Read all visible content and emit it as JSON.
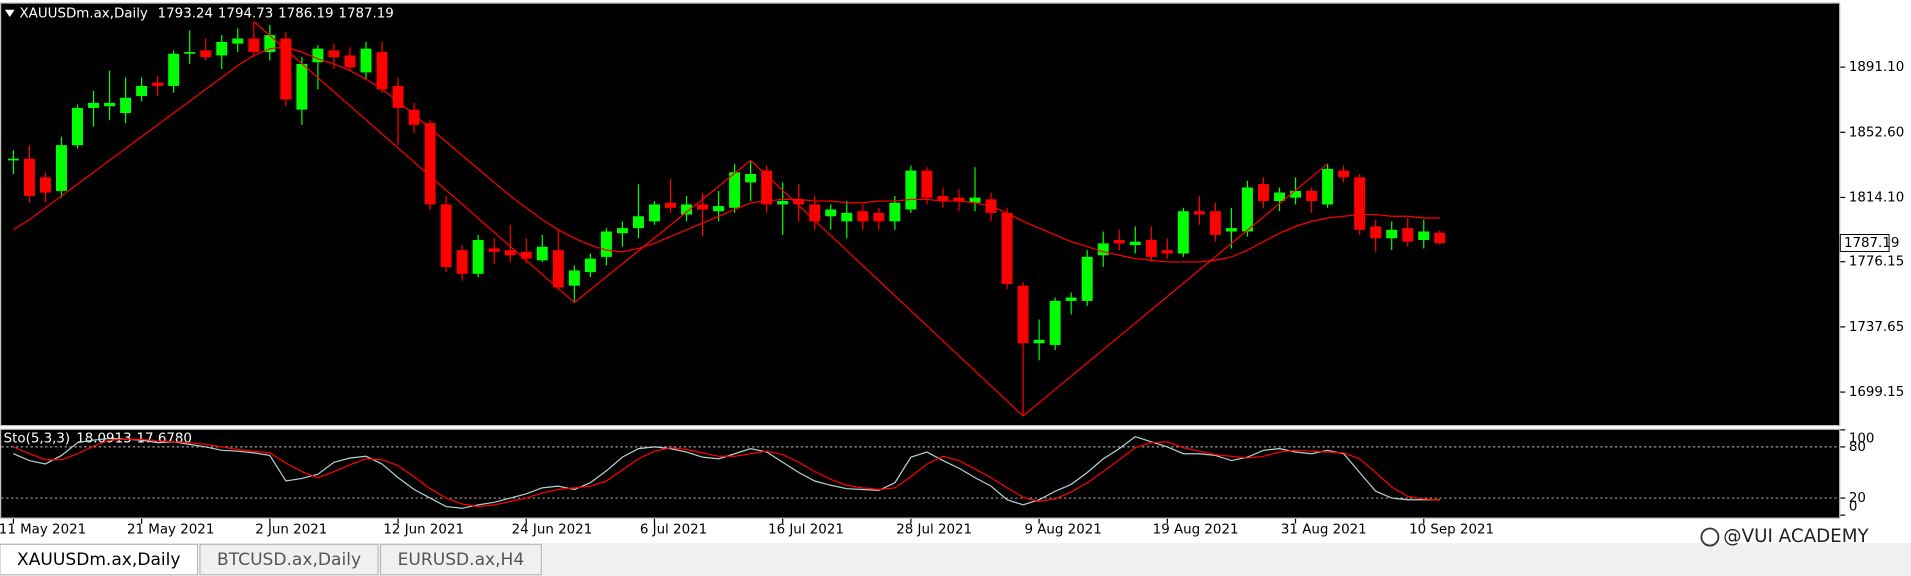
{
  "chart_data": {
    "type": "candlestick",
    "symbol": "XAUUSDm.ax,Daily",
    "categories": [
      "11 May 2021",
      null,
      null,
      null,
      null,
      null,
      null,
      null,
      "21 May 2021",
      null,
      null,
      null,
      null,
      null,
      null,
      null,
      "2 Jun 2021",
      null,
      null,
      null,
      null,
      null,
      null,
      null,
      "12 Jun 2021",
      null,
      null,
      null,
      null,
      null,
      null,
      null,
      "24 Jun 2021",
      null,
      null,
      null,
      null,
      null,
      null,
      null,
      "6 Jul 2021",
      null,
      null,
      null,
      null,
      null,
      null,
      null,
      "16 Jul 2021",
      null,
      null,
      null,
      null,
      null,
      null,
      null,
      "28 Jul 2021",
      null,
      null,
      null,
      null,
      null,
      null,
      null,
      "9 Aug 2021",
      null,
      null,
      null,
      null,
      null,
      null,
      null,
      "19 Aug 2021",
      null,
      null,
      null,
      null,
      null,
      null,
      null,
      "31 Aug 2021",
      null,
      null,
      null,
      null,
      null,
      null,
      null,
      "10 Sep 2021",
      null
    ],
    "open": [
      1836,
      1837,
      1826,
      1818,
      1845,
      1867,
      1868,
      1864,
      1874,
      1882,
      1880,
      1899,
      1901,
      1898,
      1905,
      1908,
      1900,
      1908,
      1866,
      1894,
      1901,
      1898,
      1888,
      1900,
      1880,
      1866,
      1858,
      1810,
      1783,
      1769,
      1784,
      1783,
      1782,
      1777,
      1783,
      1762,
      1770,
      1779,
      1793,
      1796,
      1800,
      1811,
      1804,
      1810,
      1806,
      1808,
      1823,
      1830,
      1810,
      1813,
      1810,
      1803,
      1800,
      1806,
      1805,
      1800,
      1807,
      1830,
      1815,
      1814,
      1811,
      1813,
      1805,
      1762,
      1728,
      1727,
      1753,
      1753,
      1780,
      1789,
      1786,
      1789,
      1783,
      1781,
      1806,
      1806,
      1794,
      1794,
      1822,
      1812,
      1814,
      1818,
      1810,
      1830,
      1826,
      1797,
      1790,
      1796,
      1789,
      1793.24
    ],
    "high": [
      1842,
      1845,
      1829,
      1850,
      1869,
      1877,
      1889,
      1885,
      1885,
      1886,
      1901,
      1913,
      1908,
      1910,
      1914,
      1918,
      1916,
      1912,
      1897,
      1904,
      1905,
      1903,
      1906,
      1906,
      1885,
      1870,
      1860,
      1815,
      1786,
      1792,
      1790,
      1798,
      1790,
      1792,
      1795,
      1774,
      1781,
      1796,
      1800,
      1822,
      1812,
      1825,
      1815,
      1817,
      1818,
      1834,
      1836,
      1833,
      1823,
      1822,
      1815,
      1810,
      1812,
      1810,
      1808,
      1815,
      1833,
      1832,
      1820,
      1819,
      1832,
      1817,
      1808,
      1764,
      1742,
      1755,
      1758,
      1783,
      1794,
      1795,
      1797,
      1797,
      1790,
      1808,
      1815,
      1811,
      1808,
      1824,
      1826,
      1820,
      1826,
      1820,
      1834,
      1833,
      1828,
      1801,
      1800,
      1802,
      1801,
      1794.73
    ],
    "low": [
      1828,
      1811,
      1811,
      1814,
      1843,
      1856,
      1860,
      1858,
      1871,
      1874,
      1876,
      1893,
      1895,
      1890,
      1900,
      1897,
      1895,
      1868,
      1857,
      1878,
      1890,
      1889,
      1884,
      1876,
      1845,
      1852,
      1807,
      1770,
      1765,
      1767,
      1775,
      1776,
      1775,
      1776,
      1760,
      1752,
      1767,
      1774,
      1785,
      1790,
      1798,
      1805,
      1800,
      1791,
      1800,
      1805,
      1812,
      1805,
      1792,
      1800,
      1795,
      1795,
      1790,
      1795,
      1795,
      1795,
      1805,
      1810,
      1808,
      1806,
      1806,
      1800,
      1760,
      1685,
      1718,
      1724,
      1745,
      1750,
      1773,
      1783,
      1781,
      1776,
      1778,
      1779,
      1798,
      1788,
      1784,
      1791,
      1808,
      1806,
      1810,
      1805,
      1808,
      1823,
      1792,
      1782,
      1783,
      1785,
      1784,
      1786.19
    ],
    "close": [
      1837,
      1815,
      1817,
      1845,
      1867,
      1870,
      1870,
      1873,
      1880,
      1880,
      1899,
      1900,
      1897,
      1906,
      1908,
      1900,
      1910,
      1872,
      1893,
      1902,
      1897,
      1891,
      1902,
      1878,
      1867,
      1857,
      1810,
      1773,
      1769,
      1789,
      1782,
      1780,
      1778,
      1785,
      1761,
      1771,
      1778,
      1794,
      1796,
      1803,
      1810,
      1808,
      1810,
      1807,
      1809,
      1829,
      1828,
      1810,
      1812,
      1810,
      1800,
      1807,
      1805,
      1800,
      1800,
      1811,
      1830,
      1814,
      1812,
      1812,
      1814,
      1805,
      1763,
      1728,
      1730,
      1753,
      1755,
      1779,
      1787,
      1787,
      1788,
      1779,
      1781,
      1806,
      1804,
      1792,
      1796,
      1820,
      1812,
      1817,
      1818,
      1812,
      1831,
      1826,
      1795,
      1790,
      1795,
      1788,
      1794,
      1787.19
    ],
    "up_color": "#00ff00",
    "down_color": "#ff0000",
    "ylim": [
      1679.7,
      1928.6
    ],
    "yticks": [
      {
        "value": 1891.1,
        "label": "1891.10"
      },
      {
        "value": 1852.6,
        "label": "1852.60"
      },
      {
        "value": 1814.1,
        "label": "1814.10"
      },
      {
        "value": 1776.15,
        "label": "1776.15"
      },
      {
        "value": 1737.65,
        "label": "1737.65"
      },
      {
        "value": 1699.15,
        "label": "1699.15"
      }
    ],
    "ma": {
      "color": "#ff0000",
      "values": [
        1795,
        1801,
        1808,
        1815,
        1822,
        1829,
        1836,
        1843,
        1850,
        1857,
        1864,
        1871,
        1878,
        1885,
        1892,
        1898,
        1902,
        1903,
        1900,
        1896,
        1893,
        1889,
        1884,
        1878,
        1871,
        1863,
        1855,
        1847,
        1839,
        1831,
        1823,
        1815,
        1808,
        1801,
        1795,
        1790,
        1786,
        1783,
        1782,
        1784,
        1787,
        1791,
        1795,
        1799,
        1803,
        1807,
        1811,
        1812,
        1813,
        1813,
        1812,
        1812,
        1811,
        1811,
        1812,
        1812,
        1813,
        1813,
        1812,
        1812,
        1811,
        1809,
        1805,
        1800,
        1796,
        1792,
        1788,
        1785,
        1782,
        1780,
        1778,
        1777,
        1776,
        1776,
        1776,
        1777,
        1779,
        1783,
        1788,
        1793,
        1797,
        1800,
        1802,
        1803,
        1804,
        1804,
        1803,
        1803,
        1802,
        1802
      ]
    },
    "zigzag": {
      "color": "#ff0000",
      "x": [
        15,
        35,
        46,
        63,
        82
      ],
      "values": [
        1918,
        1752,
        1836,
        1685,
        1834
      ]
    },
    "indicator": {
      "type": "line",
      "name": "Sto(5,3,3)",
      "readout": [
        {
          "value": 18.0913,
          "label": "18.0913"
        },
        {
          "value": 17.678,
          "label": "17.6780"
        }
      ],
      "ylim": [
        0,
        100
      ],
      "yticks": [
        100,
        80,
        20,
        0
      ],
      "series": [
        {
          "color": "#b4d2d2",
          "values": [
            72,
            64,
            60,
            70,
            85,
            88,
            90,
            89,
            88,
            85,
            86,
            83,
            80,
            76,
            75,
            73,
            70,
            40,
            43,
            48,
            62,
            67,
            69,
            60,
            44,
            30,
            20,
            10,
            8,
            12,
            15,
            20,
            25,
            32,
            34,
            30,
            38,
            52,
            68,
            78,
            80,
            78,
            74,
            68,
            66,
            72,
            78,
            74,
            62,
            50,
            40,
            35,
            31,
            30,
            29,
            38,
            68,
            74,
            64,
            55,
            44,
            34,
            18,
            12,
            18,
            28,
            36,
            50,
            66,
            78,
            92,
            86,
            80,
            72,
            72,
            70,
            64,
            68,
            76,
            78,
            74,
            72,
            76,
            72,
            50,
            28,
            20,
            18,
            18,
            18.0913
          ]
        },
        {
          "color": "#ff0000",
          "values": [
            80,
            72,
            65,
            65,
            72,
            81,
            88,
            89,
            89,
            87,
            86,
            85,
            83,
            80,
            77,
            75,
            73,
            61,
            51,
            44,
            51,
            59,
            66,
            65,
            58,
            45,
            31,
            20,
            13,
            10,
            12,
            16,
            20,
            26,
            30,
            32,
            34,
            40,
            53,
            66,
            75,
            79,
            77,
            73,
            69,
            69,
            72,
            75,
            71,
            62,
            51,
            42,
            35,
            32,
            30,
            32,
            45,
            60,
            69,
            64,
            54,
            44,
            32,
            21,
            16,
            19,
            27,
            38,
            51,
            65,
            79,
            85,
            86,
            79,
            75,
            71,
            69,
            67,
            69,
            74,
            76,
            75,
            74,
            73,
            66,
            50,
            33,
            22,
            19,
            17.678
          ]
        }
      ]
    }
  },
  "tabs": [
    {
      "label": "XAUUSDm.ax,Daily",
      "active": true
    },
    {
      "label": "BTCUSD.ax,Daily",
      "active": false
    },
    {
      "label": "EURUSD.ax,H4",
      "active": false
    }
  ],
  "watermark": "@VUI ACADEMY"
}
